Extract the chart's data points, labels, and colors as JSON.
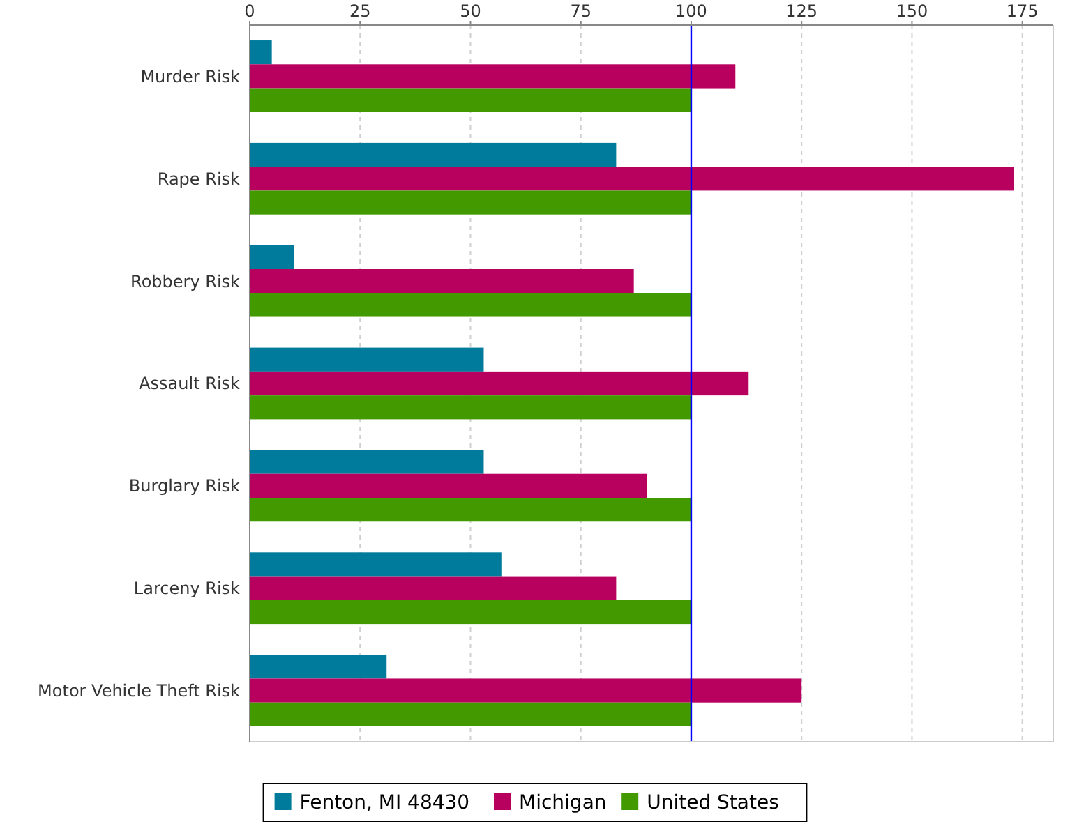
{
  "chart_data": {
    "type": "bar",
    "orientation": "horizontal",
    "categories": [
      "Murder Risk",
      "Rape Risk",
      "Robbery Risk",
      "Assault Risk",
      "Burglary Risk",
      "Larceny Risk",
      "Motor Vehicle Theft Risk"
    ],
    "series": [
      {
        "name": "Fenton, MI 48430",
        "color": "#007b9b",
        "values": [
          5,
          83,
          10,
          53,
          53,
          57,
          31
        ]
      },
      {
        "name": "Michigan",
        "color": "#b8005f",
        "values": [
          110,
          173,
          87,
          113,
          90,
          83,
          125
        ]
      },
      {
        "name": "United States",
        "color": "#429a00",
        "values": [
          100,
          100,
          100,
          100,
          100,
          100,
          100
        ]
      }
    ],
    "xlim": [
      0,
      182
    ],
    "xticks": [
      0,
      25,
      50,
      75,
      100,
      125,
      150,
      175
    ],
    "grid": "x",
    "legend": "bottom",
    "ref_lines": [
      {
        "axis": "x",
        "value": 100,
        "color": "#0000ff"
      }
    ]
  }
}
